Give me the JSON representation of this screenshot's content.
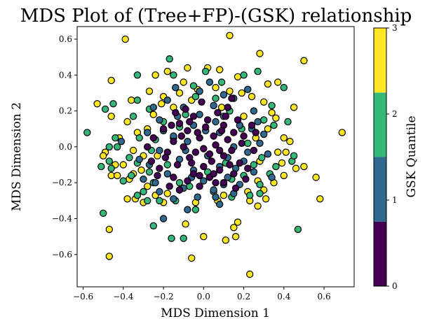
{
  "chart_data": {
    "type": "scatter",
    "title": "MDS Plot of (Tree+FP)-(GSK) relationship",
    "xlabel": "MDS Dimension 1",
    "ylabel": "MDS Dimension 2",
    "xlim": [
      -0.63,
      0.75
    ],
    "ylim": [
      -0.78,
      0.67
    ],
    "xticks": [
      -0.6,
      -0.4,
      -0.2,
      0.0,
      0.2,
      0.4,
      0.6
    ],
    "yticks": [
      -0.6,
      -0.4,
      -0.2,
      0.0,
      0.2,
      0.4,
      0.6
    ],
    "xtick_labels": [
      "−0.6",
      "−0.4",
      "−0.2",
      "0.0",
      "0.2",
      "0.4",
      "0.6"
    ],
    "ytick_labels": [
      "−0.6",
      "−0.4",
      "−0.2",
      "0.0",
      "0.2",
      "0.4",
      "0.6"
    ],
    "colorbar": {
      "label": "GSK Quantile",
      "range": [
        0,
        3
      ],
      "ticks": [
        0,
        1,
        2,
        3
      ],
      "tick_labels": [
        "0",
        "1",
        "2",
        "3"
      ],
      "colors": [
        "#440154",
        "#31688e",
        "#35b779",
        "#fde725"
      ],
      "boundaries": [
        0,
        0.75,
        1.5,
        2.25,
        3
      ]
    },
    "quantile_colors": [
      "#440154",
      "#31688e",
      "#35b779",
      "#fde725"
    ],
    "series": [
      {
        "name": "Quantile 3",
        "quantile": 3,
        "points": [
          [
            -0.39,
            0.6
          ],
          [
            0.13,
            0.62
          ],
          [
            0.28,
            0.52
          ],
          [
            0.5,
            0.48
          ],
          [
            -0.46,
            0.37
          ],
          [
            0.08,
            0.43
          ],
          [
            -0.08,
            0.44
          ],
          [
            0.02,
            0.44
          ],
          [
            -0.18,
            0.42
          ],
          [
            -0.24,
            0.4
          ],
          [
            -0.1,
            0.36
          ],
          [
            0.17,
            0.39
          ],
          [
            0.32,
            0.35
          ],
          [
            0.37,
            0.36
          ],
          [
            -0.36,
            0.26
          ],
          [
            -0.53,
            0.24
          ],
          [
            -0.27,
            0.31
          ],
          [
            -0.2,
            0.28
          ],
          [
            -0.15,
            0.22
          ],
          [
            0.24,
            0.28
          ],
          [
            0.3,
            0.25
          ],
          [
            0.45,
            0.22
          ],
          [
            -0.46,
            0.17
          ],
          [
            -0.38,
            0.14
          ],
          [
            -0.28,
            0.1
          ],
          [
            0.34,
            0.19
          ],
          [
            0.36,
            0.16
          ],
          [
            0.32,
            0.1
          ],
          [
            0.4,
            0.05
          ],
          [
            0.69,
            0.08
          ],
          [
            -0.42,
            0.05
          ],
          [
            -0.49,
            -0.03
          ],
          [
            -0.5,
            -0.05
          ],
          [
            -0.35,
            -0.02
          ],
          [
            -0.3,
            -0.05
          ],
          [
            0.41,
            -0.03
          ],
          [
            0.43,
            0.03
          ],
          [
            0.37,
            -0.03
          ],
          [
            -0.4,
            -0.1
          ],
          [
            -0.44,
            -0.1
          ],
          [
            -0.31,
            -0.13
          ],
          [
            -0.35,
            -0.15
          ],
          [
            0.5,
            -0.11
          ],
          [
            0.39,
            -0.09
          ],
          [
            -0.46,
            -0.16
          ],
          [
            -0.43,
            -0.16
          ],
          [
            -0.37,
            -0.18
          ],
          [
            0.4,
            -0.16
          ],
          [
            0.46,
            -0.12
          ],
          [
            -0.28,
            -0.22
          ],
          [
            -0.24,
            -0.27
          ],
          [
            0.3,
            -0.24
          ],
          [
            0.56,
            -0.17
          ],
          [
            0.35,
            -0.2
          ],
          [
            0.31,
            -0.29
          ],
          [
            -0.38,
            -0.29
          ],
          [
            -0.34,
            -0.29
          ],
          [
            0.58,
            -0.29
          ],
          [
            -0.3,
            -0.31
          ],
          [
            -0.2,
            -0.31
          ],
          [
            -0.04,
            -0.31
          ],
          [
            0.23,
            -0.3
          ],
          [
            0.27,
            -0.33
          ],
          [
            -0.47,
            -0.46
          ],
          [
            0.17,
            -0.42
          ],
          [
            0.15,
            -0.45
          ],
          [
            0.16,
            -0.5
          ],
          [
            0.11,
            -0.52
          ],
          [
            -0.47,
            -0.61
          ],
          [
            -0.06,
            -0.62
          ],
          [
            0.23,
            -0.71
          ],
          [
            0.0,
            -0.5
          ],
          [
            -0.09,
            -0.43
          ],
          [
            0.22,
            -0.25
          ],
          [
            -0.03,
            0.32
          ],
          [
            0.06,
            0.33
          ],
          [
            0.13,
            0.31
          ],
          [
            0.19,
            0.3
          ],
          [
            -0.12,
            0.3
          ],
          [
            -0.06,
            0.26
          ],
          [
            -0.21,
            0.24
          ],
          [
            0.09,
            0.22
          ],
          [
            -0.25,
            0.18
          ],
          [
            0.2,
            0.17
          ],
          [
            -0.33,
            0.08
          ],
          [
            0.26,
            0.05
          ],
          [
            -0.23,
            -0.05
          ],
          [
            0.28,
            -0.08
          ],
          [
            -0.18,
            -0.26
          ],
          [
            0.1,
            -0.27
          ],
          [
            0.27,
            -0.19
          ],
          [
            -0.12,
            -0.24
          ],
          [
            0.07,
            -0.3
          ]
        ]
      },
      {
        "name": "Quantile 2",
        "quantile": 2,
        "points": [
          [
            -0.58,
            0.08
          ],
          [
            -0.17,
            0.49
          ],
          [
            0.01,
            0.42
          ],
          [
            -0.15,
            0.4
          ],
          [
            0.2,
            0.4
          ],
          [
            0.27,
            0.42
          ],
          [
            0.4,
            0.33
          ],
          [
            -0.33,
            0.4
          ],
          [
            -0.33,
            0.26
          ],
          [
            -0.45,
            0.24
          ],
          [
            -0.49,
            0.21
          ],
          [
            -0.27,
            0.21
          ],
          [
            0.34,
            0.23
          ],
          [
            -0.35,
            0.17
          ],
          [
            -0.32,
            0.05
          ],
          [
            -0.44,
            0.05
          ],
          [
            -0.24,
            0.04
          ],
          [
            0.42,
            0.14
          ],
          [
            0.35,
            0.12
          ],
          [
            -0.47,
            0.0
          ],
          [
            -0.43,
            0.0
          ],
          [
            -0.37,
            -0.06
          ],
          [
            -0.47,
            -0.08
          ],
          [
            -0.51,
            -0.11
          ],
          [
            -0.46,
            -0.12
          ],
          [
            0.44,
            -0.08
          ],
          [
            0.45,
            -0.05
          ],
          [
            0.29,
            -0.06
          ],
          [
            -0.33,
            -0.09
          ],
          [
            -0.27,
            -0.14
          ],
          [
            -0.36,
            -0.16
          ],
          [
            0.33,
            -0.15
          ],
          [
            0.36,
            -0.11
          ],
          [
            -0.4,
            -0.19
          ],
          [
            -0.25,
            -0.2
          ],
          [
            0.28,
            -0.21
          ],
          [
            0.2,
            -0.16
          ],
          [
            -0.3,
            -0.25
          ],
          [
            -0.33,
            -0.27
          ],
          [
            0.23,
            -0.27
          ],
          [
            0.28,
            -0.26
          ],
          [
            -0.28,
            -0.3
          ],
          [
            -0.22,
            -0.3
          ],
          [
            -0.14,
            -0.3
          ],
          [
            0.14,
            -0.28
          ],
          [
            -0.5,
            -0.37
          ],
          [
            -0.25,
            -0.44
          ],
          [
            -0.16,
            -0.51
          ],
          [
            -0.1,
            -0.51
          ],
          [
            0.47,
            -0.46
          ],
          [
            -0.04,
            -0.35
          ],
          [
            0.05,
            -0.25
          ],
          [
            -0.12,
            -0.2
          ],
          [
            0.14,
            -0.18
          ],
          [
            -0.18,
            -0.1
          ],
          [
            0.02,
            -0.14
          ],
          [
            0.19,
            0.1
          ],
          [
            0.13,
            0.2
          ],
          [
            -0.09,
            0.18
          ],
          [
            0.06,
            0.27
          ],
          [
            -0.05,
            0.34
          ],
          [
            -0.2,
            0.14
          ],
          [
            0.22,
            0.02
          ],
          [
            -0.04,
            0.28
          ],
          [
            0.25,
            -0.1
          ],
          [
            -0.15,
            0.05
          ],
          [
            0.11,
            -0.09
          ],
          [
            -0.26,
            -0.02
          ],
          [
            0.09,
            0.36
          ],
          [
            -0.12,
            0.11
          ],
          [
            0.3,
            0.15
          ],
          [
            -0.07,
            -0.22
          ]
        ]
      },
      {
        "name": "Quantile 1",
        "quantile": 1,
        "points": [
          [
            -0.41,
            0.03
          ],
          [
            0.22,
            0.32
          ],
          [
            -0.02,
            0.31
          ],
          [
            0.15,
            0.27
          ],
          [
            -0.18,
            0.26
          ],
          [
            0.05,
            0.23
          ],
          [
            -0.1,
            0.22
          ],
          [
            0.25,
            0.2
          ],
          [
            0.1,
            0.17
          ],
          [
            -0.22,
            0.15
          ],
          [
            0.18,
            0.12
          ],
          [
            -0.05,
            0.12
          ],
          [
            0.24,
            0.1
          ],
          [
            -0.28,
            0.08
          ],
          [
            0.08,
            0.08
          ],
          [
            -0.15,
            0.06
          ],
          [
            0.28,
            0.02
          ],
          [
            -0.08,
            0.03
          ],
          [
            0.15,
            0.0
          ],
          [
            -0.22,
            -0.02
          ],
          [
            0.32,
            -0.04
          ],
          [
            0.02,
            -0.05
          ],
          [
            -0.12,
            -0.07
          ],
          [
            0.2,
            -0.08
          ],
          [
            -0.27,
            -0.1
          ],
          [
            0.08,
            -0.11
          ],
          [
            -0.05,
            -0.13
          ],
          [
            0.25,
            -0.14
          ],
          [
            -0.18,
            -0.15
          ],
          [
            0.12,
            -0.17
          ],
          [
            -0.3,
            -0.18
          ],
          [
            0.0,
            -0.19
          ],
          [
            0.18,
            -0.21
          ],
          [
            -0.1,
            -0.23
          ],
          [
            0.05,
            -0.24
          ],
          [
            -0.22,
            -0.25
          ],
          [
            0.15,
            -0.26
          ],
          [
            -0.03,
            -0.28
          ],
          [
            -0.15,
            -0.29
          ],
          [
            0.08,
            -0.32
          ],
          [
            -0.2,
            -0.4
          ],
          [
            -0.08,
            -0.35
          ],
          [
            0.12,
            -0.06
          ],
          [
            -0.02,
            0.18
          ],
          [
            0.1,
            0.29
          ],
          [
            -0.14,
            0.33
          ],
          [
            0.03,
            0.36
          ],
          [
            -0.25,
            0.22
          ],
          [
            0.3,
            0.07
          ],
          [
            -0.2,
            0.09
          ],
          [
            0.06,
            0.14
          ],
          [
            -0.09,
            -0.02
          ],
          [
            0.22,
            -0.03
          ],
          [
            -0.32,
            -0.07
          ],
          [
            0.16,
            -0.12
          ],
          [
            -0.13,
            0.17
          ],
          [
            0.27,
            0.14
          ],
          [
            -0.06,
            -0.17
          ],
          [
            0.1,
            -0.21
          ],
          [
            -0.24,
            -0.2
          ],
          [
            0.01,
            0.09
          ],
          [
            0.34,
            -0.17
          ],
          [
            0.06,
            -0.28
          ]
        ]
      },
      {
        "name": "Quantile 0",
        "quantile": 0,
        "points": [
          [
            -0.05,
            0.17
          ],
          [
            0.02,
            0.15
          ],
          [
            0.1,
            0.12
          ],
          [
            -0.12,
            0.13
          ],
          [
            0.15,
            0.08
          ],
          [
            -0.08,
            0.09
          ],
          [
            0.05,
            0.06
          ],
          [
            -0.02,
            0.05
          ],
          [
            0.12,
            0.04
          ],
          [
            -0.15,
            0.03
          ],
          [
            0.2,
            0.06
          ],
          [
            -0.1,
            0.0
          ],
          [
            0.06,
            0.01
          ],
          [
            0.0,
            -0.01
          ],
          [
            -0.04,
            -0.03
          ],
          [
            0.14,
            -0.02
          ],
          [
            -0.18,
            -0.03
          ],
          [
            0.1,
            -0.05
          ],
          [
            -0.07,
            -0.06
          ],
          [
            0.04,
            -0.08
          ],
          [
            0.18,
            -0.09
          ],
          [
            -0.13,
            -0.1
          ],
          [
            0.0,
            -0.11
          ],
          [
            -0.22,
            -0.12
          ],
          [
            0.08,
            -0.13
          ],
          [
            -0.05,
            -0.15
          ],
          [
            0.15,
            -0.15
          ],
          [
            -0.15,
            -0.17
          ],
          [
            0.03,
            -0.17
          ],
          [
            -0.08,
            -0.19
          ],
          [
            0.1,
            -0.2
          ],
          [
            -0.02,
            -0.22
          ],
          [
            -0.17,
            -0.22
          ],
          [
            0.06,
            -0.2
          ],
          [
            0.21,
            -0.18
          ],
          [
            -0.25,
            0.05
          ],
          [
            0.25,
            -0.02
          ],
          [
            -0.2,
            0.1
          ],
          [
            0.17,
            0.15
          ],
          [
            -0.09,
            0.21
          ],
          [
            0.07,
            0.19
          ],
          [
            0.24,
            0.12
          ],
          [
            -0.26,
            -0.08
          ],
          [
            0.12,
            0.22
          ],
          [
            -0.01,
            0.25
          ],
          [
            -0.14,
            0.19
          ],
          [
            0.19,
            0.02
          ],
          [
            0.01,
            0.11
          ],
          [
            -0.11,
            0.06
          ],
          [
            0.08,
            -0.02
          ],
          [
            -0.03,
            0.08
          ],
          [
            0.13,
            -0.1
          ],
          [
            -0.19,
            -0.06
          ],
          [
            0.22,
            -0.12
          ],
          [
            -0.06,
            -0.09
          ],
          [
            0.05,
            -0.15
          ],
          [
            -0.23,
            -0.16
          ],
          [
            0.16,
            -0.23
          ],
          [
            -0.12,
            -0.24
          ],
          [
            -0.02,
            -0.16
          ],
          [
            0.09,
            0.09
          ],
          [
            -0.16,
            0.12
          ],
          [
            0.03,
            -0.04
          ],
          [
            -0.07,
            0.14
          ],
          [
            0.11,
            0.17
          ],
          [
            0.26,
            0.08
          ],
          [
            -0.28,
            0.0
          ],
          [
            0.14,
            0.27
          ]
        ]
      }
    ]
  }
}
